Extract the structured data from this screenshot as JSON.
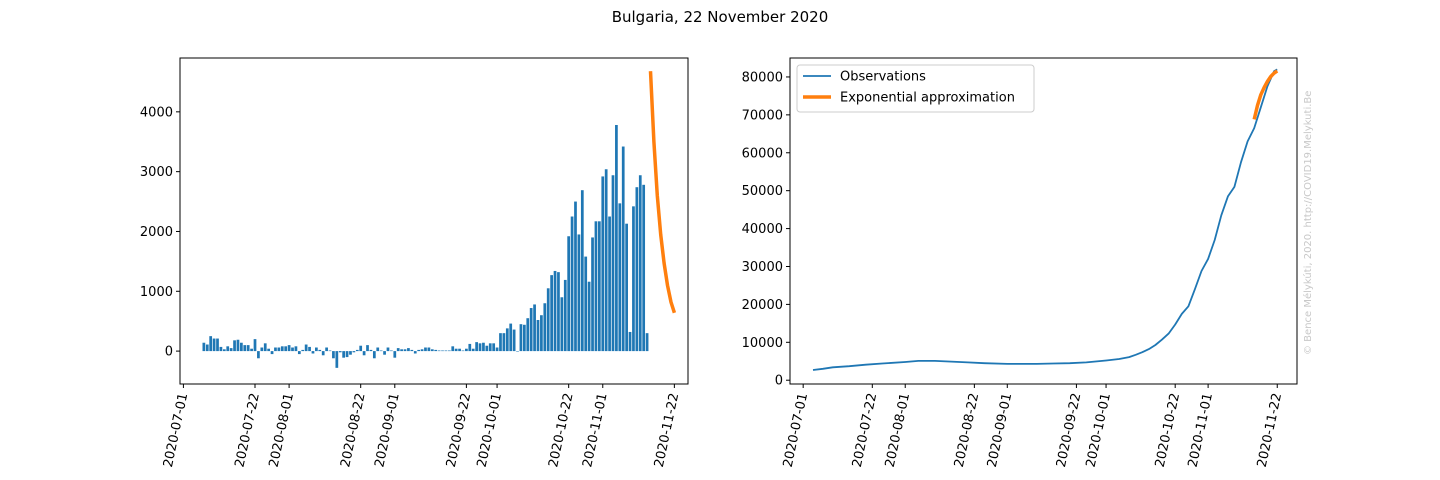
{
  "title": "Bulgaria, 22 November 2020",
  "watermark": "© Bence Mélykúti, 2020. http://COVID19.Melykuti.Be",
  "colors": {
    "bars": "#1f77b4",
    "observations": "#1f77b4",
    "approximation": "#ff7f0e"
  },
  "chart_data": [
    {
      "type": "bar",
      "xlim": [
        "2020-06-30",
        "2020-11-26"
      ],
      "ylim": [
        -550,
        4900
      ],
      "x_ticks": [
        "2020-07-01",
        "2020-07-22",
        "2020-08-01",
        "2020-08-22",
        "2020-09-01",
        "2020-09-22",
        "2020-10-01",
        "2020-10-22",
        "2020-11-01",
        "2020-11-22"
      ],
      "y_ticks": [
        0,
        1000,
        2000,
        3000,
        4000
      ],
      "start_date": "2020-07-07",
      "values": [
        140,
        110,
        250,
        210,
        210,
        70,
        30,
        80,
        50,
        180,
        190,
        140,
        100,
        100,
        40,
        200,
        -120,
        60,
        130,
        40,
        -50,
        60,
        60,
        80,
        80,
        100,
        60,
        80,
        -50,
        20,
        110,
        70,
        -40,
        60,
        20,
        -70,
        60,
        10,
        -120,
        -280,
        -20,
        -110,
        -100,
        -60,
        -20,
        20,
        90,
        -70,
        100,
        20,
        -120,
        60,
        10,
        -60,
        60,
        10,
        -110,
        50,
        30,
        30,
        50,
        20,
        -40,
        20,
        30,
        60,
        60,
        30,
        20,
        10,
        10,
        10,
        10,
        80,
        40,
        40,
        10,
        40,
        120,
        40,
        150,
        130,
        140,
        90,
        130,
        130,
        60,
        300,
        300,
        380,
        460,
        360,
        0,
        450,
        440,
        550,
        720,
        780,
        520,
        600,
        800,
        1050,
        1270,
        1340,
        1320,
        900,
        1190,
        1920,
        2250,
        2500,
        1950,
        2690,
        1580,
        1160,
        1900,
        2170,
        2170,
        2920,
        3040,
        2250,
        2940,
        3780,
        2470,
        3420,
        2130,
        320,
        2420,
        2740,
        2940,
        2780,
        300
      ],
      "fit": {
        "name": "Exponential approximation",
        "points": [
          [
            "2020-11-15",
            4680
          ],
          [
            "2020-11-16",
            3500
          ],
          [
            "2020-11-17",
            2600
          ],
          [
            "2020-11-18",
            1950
          ],
          [
            "2020-11-19",
            1470
          ],
          [
            "2020-11-20",
            1100
          ],
          [
            "2020-11-21",
            820
          ],
          [
            "2020-11-22",
            640
          ]
        ]
      }
    },
    {
      "type": "line",
      "xlim": [
        "2020-06-27",
        "2020-11-28"
      ],
      "ylim": [
        -1000,
        85000
      ],
      "x_ticks": [
        "2020-07-01",
        "2020-07-22",
        "2020-08-01",
        "2020-08-22",
        "2020-09-01",
        "2020-09-22",
        "2020-10-01",
        "2020-10-22",
        "2020-11-01",
        "2020-11-22"
      ],
      "y_ticks": [
        0,
        10000,
        20000,
        30000,
        40000,
        50000,
        60000,
        70000,
        80000
      ],
      "legend_position": "upper-left",
      "series": [
        {
          "name": "Observations",
          "points": [
            [
              "2020-07-04",
              2700
            ],
            [
              "2020-07-07",
              3000
            ],
            [
              "2020-07-10",
              3400
            ],
            [
              "2020-07-15",
              3700
            ],
            [
              "2020-07-20",
              4100
            ],
            [
              "2020-07-25",
              4400
            ],
            [
              "2020-08-01",
              4800
            ],
            [
              "2020-08-05",
              5100
            ],
            [
              "2020-08-10",
              5100
            ],
            [
              "2020-08-15",
              4900
            ],
            [
              "2020-08-20",
              4700
            ],
            [
              "2020-08-25",
              4500
            ],
            [
              "2020-09-01",
              4300
            ],
            [
              "2020-09-10",
              4300
            ],
            [
              "2020-09-15",
              4400
            ],
            [
              "2020-09-20",
              4500
            ],
            [
              "2020-09-25",
              4700
            ],
            [
              "2020-10-01",
              5200
            ],
            [
              "2020-10-05",
              5600
            ],
            [
              "2020-10-08",
              6100
            ],
            [
              "2020-10-10",
              6700
            ],
            [
              "2020-10-12",
              7400
            ],
            [
              "2020-10-14",
              8200
            ],
            [
              "2020-10-16",
              9300
            ],
            [
              "2020-10-18",
              10700
            ],
            [
              "2020-10-20",
              12300
            ],
            [
              "2020-10-22",
              14700
            ],
            [
              "2020-10-24",
              17500
            ],
            [
              "2020-10-26",
              19500
            ],
            [
              "2020-10-28",
              24000
            ],
            [
              "2020-10-30",
              28800
            ],
            [
              "2020-11-01",
              32000
            ],
            [
              "2020-11-03",
              37000
            ],
            [
              "2020-11-05",
              43500
            ],
            [
              "2020-11-07",
              48500
            ],
            [
              "2020-11-09",
              51000
            ],
            [
              "2020-11-11",
              57500
            ],
            [
              "2020-11-13",
              63000
            ],
            [
              "2020-11-15",
              66500
            ],
            [
              "2020-11-17",
              72000
            ],
            [
              "2020-11-19",
              77500
            ],
            [
              "2020-11-21",
              81500
            ],
            [
              "2020-11-22",
              82000
            ]
          ]
        },
        {
          "name": "Exponential approximation",
          "points": [
            [
              "2020-11-15",
              68800
            ],
            [
              "2020-11-16",
              72500
            ],
            [
              "2020-11-17",
              75300
            ],
            [
              "2020-11-18",
              77200
            ],
            [
              "2020-11-19",
              78800
            ],
            [
              "2020-11-20",
              80100
            ],
            [
              "2020-11-21",
              81000
            ],
            [
              "2020-11-22",
              81600
            ]
          ]
        }
      ]
    }
  ]
}
